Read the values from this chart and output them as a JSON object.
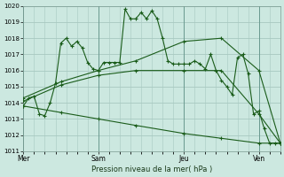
{
  "background_color": "#cce8e0",
  "grid_color": "#a8c8c0",
  "line_color": "#1a5c1a",
  "xlabel": "Pression niveau de la mer( hPa )",
  "ylim": [
    1011,
    1020
  ],
  "xlim": [
    0,
    48
  ],
  "yticks": [
    1011,
    1012,
    1013,
    1014,
    1015,
    1016,
    1017,
    1018,
    1019,
    1020
  ],
  "xtick_pos": [
    0,
    14,
    30,
    44
  ],
  "xtick_labels": [
    "Mer",
    "Sam",
    "Jeu",
    "Ven"
  ],
  "s1_x": [
    0,
    1,
    2,
    3,
    4,
    5,
    6,
    7,
    8,
    9,
    10,
    11,
    12,
    13,
    14,
    15,
    16,
    17,
    18,
    19,
    20,
    21,
    22,
    23,
    24,
    25,
    26,
    27,
    28,
    29,
    30,
    31,
    32,
    33,
    34,
    35,
    36,
    37,
    38,
    39,
    40,
    41,
    42,
    43,
    44,
    45,
    46,
    47,
    48
  ],
  "s1_y": [
    1013.8,
    1014.3,
    1014.4,
    1013.3,
    1013.2,
    1014.0,
    1015.2,
    1017.7,
    1018.0,
    1017.5,
    1017.8,
    1017.4,
    1016.5,
    1016.1,
    1016.0,
    1016.5,
    1016.5,
    1016.5,
    1016.5,
    1019.8,
    1019.2,
    1019.2,
    1019.6,
    1019.2,
    1019.7,
    1019.2,
    1018.0,
    1016.6,
    1016.4,
    1016.4,
    1016.4,
    1016.4,
    1016.6,
    1016.4,
    1016.1,
    1017.0,
    1016.0,
    1015.4,
    1015.0,
    1014.5,
    1016.8,
    1017.0,
    1015.8,
    1013.3,
    1013.5,
    1012.4,
    1011.5,
    1011.5,
    1011.5
  ],
  "s2_x": [
    0,
    7,
    14,
    21,
    30,
    37,
    44,
    48
  ],
  "s2_y": [
    1014.3,
    1015.3,
    1016.0,
    1016.6,
    1017.8,
    1018.0,
    1016.0,
    1011.5
  ],
  "s3_x": [
    0,
    7,
    14,
    21,
    30,
    37,
    44,
    48
  ],
  "s3_y": [
    1014.1,
    1015.1,
    1015.7,
    1016.0,
    1016.0,
    1016.0,
    1013.3,
    1011.5
  ],
  "s4_x": [
    0,
    7,
    14,
    21,
    30,
    37,
    44,
    48
  ],
  "s4_y": [
    1013.8,
    1013.4,
    1013.0,
    1012.6,
    1012.1,
    1011.8,
    1011.5,
    1011.5
  ]
}
